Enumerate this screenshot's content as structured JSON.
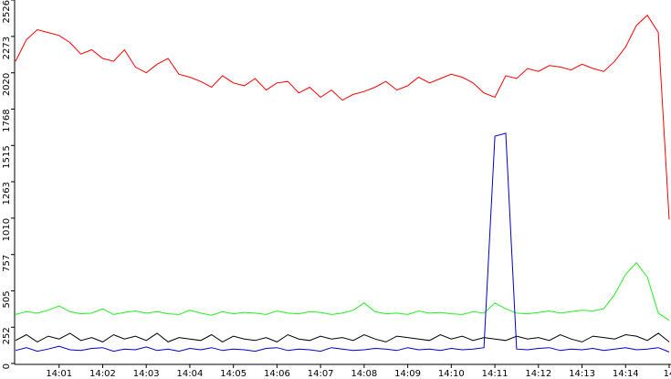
{
  "chart_data": {
    "type": "line",
    "categories": [
      null,
      null,
      null,
      null,
      "14:01",
      null,
      null,
      null,
      "14:02",
      null,
      null,
      null,
      "14:03",
      null,
      null,
      null,
      "14:04",
      null,
      null,
      null,
      "14:05",
      null,
      null,
      null,
      "14:06",
      null,
      null,
      null,
      "14:07",
      null,
      null,
      null,
      "14:08",
      null,
      null,
      null,
      "14:09",
      null,
      null,
      null,
      "14:10",
      null,
      null,
      null,
      "14:11",
      null,
      null,
      null,
      "14:12",
      null,
      null,
      null,
      "14:13",
      null,
      null,
      null,
      "14:14",
      null,
      null,
      null,
      "14"
    ],
    "series": [
      {
        "color": "#ff0000",
        "values": [
          2100,
          2250,
          2320,
          2300,
          2280,
          2230,
          2150,
          2180,
          2120,
          2100,
          2180,
          2060,
          2020,
          2080,
          2120,
          2010,
          1990,
          1960,
          1920,
          2000,
          1950,
          1930,
          1980,
          1900,
          1950,
          1960,
          1880,
          1920,
          1850,
          1900,
          1830,
          1870,
          1890,
          1920,
          1960,
          1900,
          1930,
          1990,
          1950,
          1980,
          2010,
          1990,
          1950,
          1880,
          1850,
          2000,
          1980,
          2050,
          2030,
          2070,
          2060,
          2040,
          2080,
          2050,
          2030,
          2100,
          2200,
          2350,
          2420,
          2300,
          1000
        ]
      },
      {
        "color": "#22ee22",
        "values": [
          340,
          360,
          350,
          370,
          400,
          360,
          345,
          350,
          380,
          340,
          355,
          365,
          350,
          360,
          345,
          340,
          370,
          350,
          335,
          360,
          345,
          355,
          350,
          340,
          365,
          350,
          345,
          360,
          355,
          340,
          350,
          370,
          420,
          360,
          345,
          350,
          340,
          365,
          350,
          355,
          345,
          340,
          360,
          350,
          420,
          380,
          350,
          345,
          355,
          365,
          350,
          360,
          370,
          365,
          380,
          480,
          620,
          700,
          600,
          350,
          300
        ]
      },
      {
        "color": "#000000",
        "values": [
          160,
          200,
          150,
          190,
          170,
          210,
          160,
          180,
          150,
          200,
          170,
          190,
          160,
          210,
          150,
          180,
          170,
          160,
          200,
          150,
          190,
          170,
          160,
          180,
          150,
          200,
          170,
          160,
          190,
          170,
          180,
          160,
          200,
          170,
          150,
          190,
          180,
          170,
          160,
          200,
          170,
          190,
          160,
          180,
          170,
          160,
          190,
          170,
          180,
          160,
          200,
          170,
          150,
          190,
          180,
          170,
          200,
          190,
          160,
          210,
          150
        ]
      },
      {
        "color": "#0000cc",
        "values": [
          90,
          110,
          85,
          100,
          120,
          95,
          90,
          105,
          110,
          85,
          100,
          95,
          115,
          90,
          100,
          85,
          105,
          95,
          110,
          90,
          100,
          95,
          85,
          105,
          110,
          90,
          100,
          95,
          85,
          110,
          100,
          90,
          95,
          105,
          100,
          90,
          110,
          95,
          100,
          90,
          105,
          95,
          100,
          110,
          1580,
          1600,
          100,
          95,
          105,
          110,
          90,
          100,
          95,
          105,
          90,
          100,
          110,
          95,
          100,
          110,
          80
        ]
      }
    ],
    "ylim": [
      0,
      2526
    ],
    "yticks": [
      0,
      252,
      505,
      757,
      1010,
      1263,
      1515,
      1768,
      2020,
      2273,
      2526
    ],
    "grid": false
  }
}
